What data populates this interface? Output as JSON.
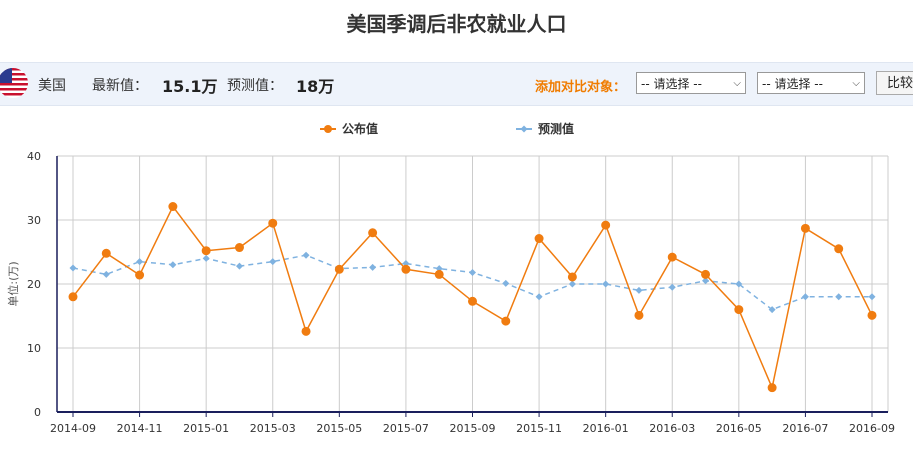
{
  "page": {
    "title": "美国季调后非农就业人口",
    "country": "美国",
    "latest_label": "最新值：",
    "latest_value": "15.1万",
    "forecast_label": "预测值：",
    "forecast_value": "18万",
    "compare_label": "添加对比对象：",
    "select1": "-- 请选择 --",
    "select2": "-- 请选择 --",
    "compare_button": "比较"
  },
  "colors": {
    "published": "#f07c10",
    "forecast": "#7fb2e0",
    "axis": "#1a1f5c",
    "grid": "#cccccc",
    "info_bar": "#eef3fb"
  },
  "icons": {
    "flag": "us-flag-icon",
    "select_arrow": "chevron-down-icon"
  },
  "chart_data": {
    "type": "line",
    "ylabel": "单位:(万)",
    "ylim": [
      0,
      40
    ],
    "yticks": [
      "0",
      "10",
      "20",
      "30",
      "40"
    ],
    "xticks": [
      "2014-09",
      "2014-11",
      "2015-01",
      "2015-03",
      "2015-05",
      "2015-07",
      "2015-09",
      "2015-11",
      "2016-01",
      "2016-03",
      "2016-05",
      "2016-07",
      "2016-09"
    ],
    "legend_position": "top-center",
    "grid": true,
    "series": [
      {
        "name": "公布值",
        "color": "#f07c10",
        "dashed": false,
        "marker": "circle",
        "values": [
          18.0,
          24.8,
          21.4,
          32.1,
          25.2,
          25.7,
          29.5,
          12.6,
          22.3,
          28.0,
          22.3,
          21.5,
          17.3,
          14.2,
          27.1,
          21.1,
          29.2,
          15.1,
          24.2,
          21.5,
          16.0,
          3.8,
          28.7,
          25.5,
          15.1
        ]
      },
      {
        "name": "预测值",
        "color": "#7fb2e0",
        "dashed": true,
        "marker": "diamond",
        "values": [
          22.5,
          21.5,
          23.5,
          23.0,
          24.0,
          22.8,
          23.5,
          24.5,
          22.4,
          22.6,
          23.2,
          22.4,
          21.8,
          20.1,
          18.0,
          20.0,
          20.0,
          19.0,
          19.5,
          20.5,
          20.0,
          16.0,
          18.0,
          18.0,
          18.0
        ]
      }
    ]
  }
}
